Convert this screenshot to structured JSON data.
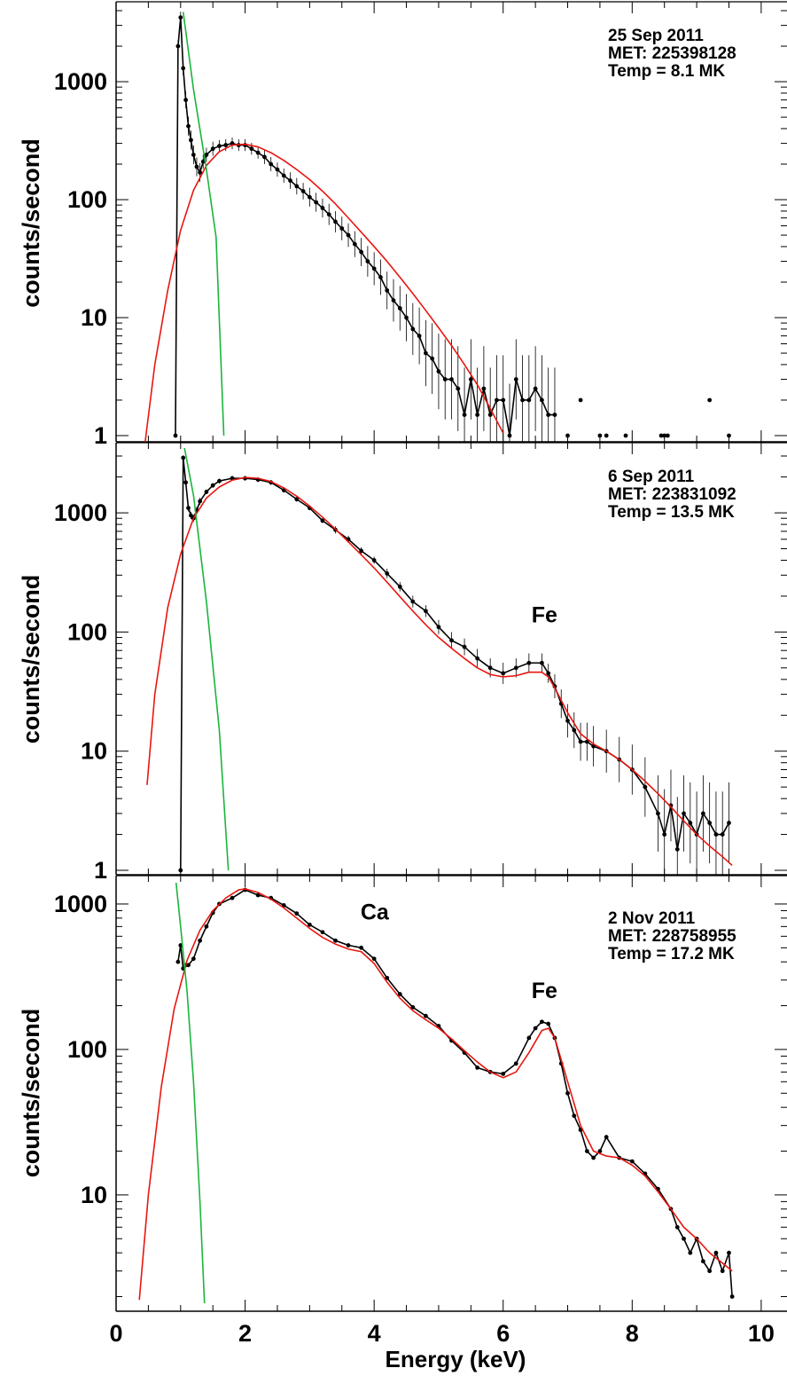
{
  "chart_data": [
    {
      "type": "line",
      "ylabel": "counts/second",
      "yscale": "log",
      "ylim": [
        1,
        4000
      ],
      "xlim": [
        0,
        10.4
      ],
      "yticks": [
        {
          "v": 1,
          "label": "1"
        },
        {
          "v": 10,
          "label": "10"
        },
        {
          "v": 100,
          "label": "100"
        },
        {
          "v": 1000,
          "label": "1000"
        }
      ],
      "annotation": [
        "25 Sep 2011",
        "MET: 225398128",
        "Temp = 8.1 MK"
      ],
      "line_labels": [],
      "series": [
        {
          "role": "data",
          "color": "#000000",
          "x": [
            0.92,
            0.96,
            1.0,
            1.04,
            1.08,
            1.12,
            1.16,
            1.2,
            1.25,
            1.3,
            1.35,
            1.4,
            1.5,
            1.6,
            1.7,
            1.8,
            1.9,
            2.0,
            2.1,
            2.2,
            2.3,
            2.4,
            2.5,
            2.6,
            2.7,
            2.8,
            2.9,
            3.0,
            3.1,
            3.2,
            3.3,
            3.4,
            3.5,
            3.6,
            3.7,
            3.8,
            3.9,
            4.0,
            4.1,
            4.2,
            4.3,
            4.4,
            4.5,
            4.6,
            4.7,
            4.8,
            4.9,
            5.0,
            5.1,
            5.2,
            5.3,
            5.4,
            5.5,
            5.6,
            5.7,
            5.8,
            5.9,
            6.0,
            6.1,
            6.2,
            6.3,
            6.4,
            6.5,
            6.6,
            6.7,
            6.8
          ],
          "y": [
            1,
            2000,
            3500,
            1300,
            700,
            420,
            320,
            240,
            190,
            170,
            210,
            240,
            270,
            285,
            290,
            300,
            290,
            290,
            270,
            250,
            230,
            200,
            180,
            160,
            145,
            130,
            118,
            105,
            95,
            85,
            75,
            65,
            57,
            50,
            42,
            36,
            30,
            26,
            22,
            17,
            14,
            12,
            10,
            8,
            7,
            5,
            4.5,
            3.5,
            3,
            3,
            2.5,
            1.5,
            3,
            1.5,
            2.5,
            1.5,
            2,
            2,
            1,
            3,
            2,
            2,
            2.5,
            2,
            1.5,
            1.5
          ],
          "err": [
            0,
            0.05,
            0.05,
            0.06,
            0.07,
            0.08,
            0.08,
            0.08,
            0.08,
            0.08,
            0.06,
            0.06,
            0.06,
            0.05,
            0.05,
            0.05,
            0.05,
            0.05,
            0.05,
            0.05,
            0.06,
            0.06,
            0.06,
            0.06,
            0.07,
            0.07,
            0.07,
            0.08,
            0.08,
            0.08,
            0.09,
            0.09,
            0.1,
            0.1,
            0.11,
            0.12,
            0.13,
            0.14,
            0.15,
            0.16,
            0.18,
            0.19,
            0.2,
            0.22,
            0.24,
            0.28,
            0.3,
            0.32,
            0.34,
            0.34,
            0.36,
            0.4,
            0.34,
            0.4,
            0.36,
            0.4,
            0.38,
            0.38,
            0.44,
            0.34,
            0.38,
            0.38,
            0.36,
            0.38,
            0.4,
            0.4
          ]
        },
        {
          "role": "points",
          "color": "#000000",
          "x": [
            7.0,
            7.2,
            7.5,
            7.6,
            7.9,
            8.45,
            8.5,
            8.55,
            9.2,
            9.5
          ],
          "y": [
            1,
            2,
            1,
            1,
            1,
            1,
            1,
            1,
            2,
            1
          ]
        },
        {
          "role": "fit_thermal",
          "color": "#e8160f",
          "x": [
            0.45,
            0.6,
            0.8,
            1.0,
            1.2,
            1.4,
            1.6,
            1.8,
            2.0,
            2.2,
            2.4,
            2.6,
            2.8,
            3.0,
            3.2,
            3.4,
            3.6,
            3.8,
            4.0,
            4.2,
            4.4,
            4.6,
            4.8,
            5.0,
            5.2,
            5.4,
            5.6,
            5.8,
            6.0
          ],
          "y": [
            0.88,
            4,
            17,
            55,
            120,
            195,
            255,
            290,
            295,
            280,
            250,
            215,
            180,
            148,
            118,
            92,
            70,
            53,
            40,
            30,
            22,
            16,
            11.5,
            8.2,
            5.8,
            4.0,
            2.7,
            1.7,
            1.05
          ]
        },
        {
          "role": "fit_nonthermal",
          "color": "#1bb53c",
          "x": [
            1.04,
            1.2,
            1.4,
            1.55,
            1.67
          ],
          "y": [
            3900,
            860,
            180,
            48,
            1.0
          ]
        }
      ]
    },
    {
      "type": "line",
      "ylabel": "counts/second",
      "yscale": "log",
      "ylim": [
        1,
        3500
      ],
      "xlim": [
        0,
        10.4
      ],
      "yticks": [
        {
          "v": 1,
          "label": "1"
        },
        {
          "v": 10,
          "label": "10"
        },
        {
          "v": 100,
          "label": "100"
        },
        {
          "v": 1000,
          "label": "1000"
        }
      ],
      "annotation": [
        "6 Sep 2011",
        "MET: 223831092",
        "Temp = 13.5 MK"
      ],
      "line_labels": [
        {
          "text": "Fe",
          "x": 6.55,
          "y": 120
        }
      ],
      "series": [
        {
          "role": "data",
          "color": "#000000",
          "x": [
            1.0,
            1.04,
            1.08,
            1.12,
            1.16,
            1.2,
            1.25,
            1.3,
            1.4,
            1.5,
            1.6,
            1.8,
            2.0,
            2.2,
            2.4,
            2.6,
            2.8,
            3.0,
            3.2,
            3.4,
            3.6,
            3.8,
            4.0,
            4.2,
            4.4,
            4.6,
            4.8,
            5.0,
            5.2,
            5.4,
            5.6,
            5.8,
            6.0,
            6.2,
            6.4,
            6.6,
            6.7,
            6.8,
            6.9,
            7.0,
            7.1,
            7.2,
            7.3,
            7.4,
            7.6,
            7.8,
            8.0,
            8.2,
            8.4,
            8.5,
            8.6,
            8.7,
            8.8,
            8.9,
            9.0,
            9.1,
            9.2,
            9.3,
            9.4,
            9.5
          ],
          "y": [
            1,
            2900,
            1800,
            1100,
            950,
            900,
            1050,
            1250,
            1500,
            1700,
            1850,
            1950,
            1950,
            1900,
            1800,
            1550,
            1300,
            1100,
            860,
            720,
            600,
            480,
            400,
            310,
            240,
            180,
            150,
            110,
            85,
            75,
            60,
            50,
            45,
            50,
            55,
            55,
            45,
            35,
            25,
            18,
            15,
            12,
            12,
            11,
            10,
            8.5,
            7,
            5,
            3,
            2,
            3.5,
            1.5,
            3,
            2.5,
            2,
            3,
            2.5,
            2,
            2,
            2.5
          ],
          "err": [
            0,
            0.02,
            0.03,
            0.03,
            0.03,
            0.03,
            0.03,
            0.03,
            0.02,
            0.02,
            0.02,
            0.02,
            0.02,
            0.02,
            0.02,
            0.02,
            0.02,
            0.02,
            0.02,
            0.03,
            0.03,
            0.03,
            0.03,
            0.04,
            0.04,
            0.05,
            0.05,
            0.06,
            0.07,
            0.07,
            0.08,
            0.08,
            0.09,
            0.08,
            0.08,
            0.08,
            0.08,
            0.1,
            0.12,
            0.14,
            0.15,
            0.16,
            0.16,
            0.17,
            0.18,
            0.19,
            0.21,
            0.25,
            0.32,
            0.38,
            0.3,
            0.44,
            0.32,
            0.34,
            0.36,
            0.32,
            0.34,
            0.36,
            0.36,
            0.34
          ]
        },
        {
          "role": "fit_thermal",
          "color": "#e8160f",
          "x": [
            0.48,
            0.6,
            0.8,
            1.0,
            1.2,
            1.4,
            1.6,
            1.8,
            2.0,
            2.2,
            2.4,
            2.6,
            2.8,
            3.0,
            3.2,
            3.4,
            3.6,
            3.8,
            4.0,
            4.2,
            4.4,
            4.6,
            4.8,
            5.0,
            5.2,
            5.4,
            5.6,
            5.8,
            6.0,
            6.2,
            6.4,
            6.6,
            6.7,
            6.8,
            7.0,
            7.2,
            7.4,
            7.6,
            7.8,
            8.0,
            8.2,
            8.4,
            8.6,
            8.8,
            9.0,
            9.2,
            9.4,
            9.55
          ],
          "y": [
            5.2,
            30,
            160,
            450,
            900,
            1330,
            1650,
            1880,
            1980,
            1950,
            1830,
            1620,
            1380,
            1140,
            920,
            730,
            570,
            445,
            345,
            262,
            198,
            150,
            115,
            90,
            73,
            60,
            50,
            44,
            42,
            43,
            46,
            46,
            42,
            34,
            21,
            14,
            11.5,
            10,
            8.5,
            7,
            5.6,
            4.4,
            3.4,
            2.6,
            2.0,
            1.6,
            1.3,
            1.1
          ]
        },
        {
          "role": "fit_nonthermal",
          "color": "#1bb53c",
          "x": [
            1.06,
            1.2,
            1.4,
            1.6,
            1.74
          ],
          "y": [
            3500,
            1400,
            180,
            15,
            1.0
          ]
        }
      ]
    },
    {
      "type": "line",
      "xlabel": "Energy (keV)",
      "ylabel": "counts/second",
      "yscale": "log",
      "ylim": [
        1.8,
        1400
      ],
      "xlim": [
        0,
        10.4
      ],
      "xticks": [
        {
          "v": 0,
          "label": "0"
        },
        {
          "v": 2,
          "label": "2"
        },
        {
          "v": 4,
          "label": "4"
        },
        {
          "v": 6,
          "label": "6"
        },
        {
          "v": 8,
          "label": "8"
        },
        {
          "v": 10,
          "label": "10"
        }
      ],
      "yticks": [
        {
          "v": 10,
          "label": "10"
        },
        {
          "v": 100,
          "label": "100"
        },
        {
          "v": 1000,
          "label": "1000"
        }
      ],
      "annotation": [
        "2 Nov 2011",
        "MET: 228758955",
        "Temp = 17.2 MK"
      ],
      "line_labels": [
        {
          "text": "Ca",
          "x": 3.9,
          "y": 780
        },
        {
          "text": "Fe",
          "x": 6.55,
          "y": 225
        }
      ],
      "series": [
        {
          "role": "data",
          "color": "#000000",
          "x": [
            0.96,
            1.0,
            1.04,
            1.08,
            1.12,
            1.2,
            1.3,
            1.4,
            1.5,
            1.6,
            1.8,
            2.0,
            2.2,
            2.4,
            2.6,
            2.8,
            3.0,
            3.2,
            3.4,
            3.6,
            3.8,
            4.0,
            4.2,
            4.4,
            4.6,
            4.8,
            5.0,
            5.2,
            5.4,
            5.6,
            5.8,
            6.0,
            6.2,
            6.4,
            6.5,
            6.6,
            6.7,
            6.8,
            6.9,
            7.0,
            7.1,
            7.2,
            7.3,
            7.4,
            7.5,
            7.6,
            7.8,
            8.0,
            8.2,
            8.4,
            8.6,
            8.7,
            8.8,
            8.9,
            9.0,
            9.1,
            9.2,
            9.3,
            9.4,
            9.5,
            9.55
          ],
          "y": [
            400,
            520,
            360,
            380,
            380,
            420,
            560,
            700,
            870,
            1000,
            1100,
            1250,
            1150,
            1100,
            980,
            860,
            720,
            640,
            560,
            520,
            500,
            420,
            310,
            240,
            195,
            170,
            145,
            115,
            95,
            75,
            70,
            68,
            80,
            120,
            140,
            155,
            150,
            120,
            80,
            50,
            35,
            28,
            20,
            18,
            20,
            25,
            18,
            17,
            14,
            11,
            8,
            6,
            5,
            4,
            5,
            3.5,
            3,
            4,
            3,
            4,
            2
          ]
        },
        {
          "role": "fit_thermal",
          "color": "#e8160f",
          "x": [
            0.36,
            0.5,
            0.7,
            0.9,
            1.1,
            1.3,
            1.5,
            1.7,
            1.9,
            2.0,
            2.2,
            2.4,
            2.6,
            2.8,
            3.0,
            3.2,
            3.4,
            3.6,
            3.8,
            4.0,
            4.2,
            4.4,
            4.6,
            4.8,
            5.0,
            5.2,
            5.4,
            5.6,
            5.8,
            6.0,
            6.2,
            6.4,
            6.6,
            6.7,
            6.8,
            7.0,
            7.2,
            7.4,
            7.6,
            7.8,
            8.0,
            8.2,
            8.4,
            8.6,
            8.8,
            9.0,
            9.2,
            9.4,
            9.55
          ],
          "y": [
            1.9,
            10,
            55,
            190,
            410,
            660,
            900,
            1100,
            1250,
            1270,
            1200,
            1080,
            940,
            800,
            680,
            590,
            530,
            490,
            470,
            390,
            290,
            225,
            185,
            160,
            140,
            118,
            98,
            82,
            70,
            64,
            70,
            95,
            135,
            140,
            120,
            60,
            30,
            20,
            18.5,
            18,
            16,
            13.5,
            10.5,
            8,
            6,
            5,
            4,
            3.4,
            3.0
          ]
        },
        {
          "role": "fit_nonthermal",
          "color": "#1bb53c",
          "x": [
            0.93,
            1.0,
            1.1,
            1.2,
            1.3,
            1.37
          ],
          "y": [
            1400,
            700,
            250,
            60,
            9,
            1.8
          ]
        }
      ]
    }
  ]
}
